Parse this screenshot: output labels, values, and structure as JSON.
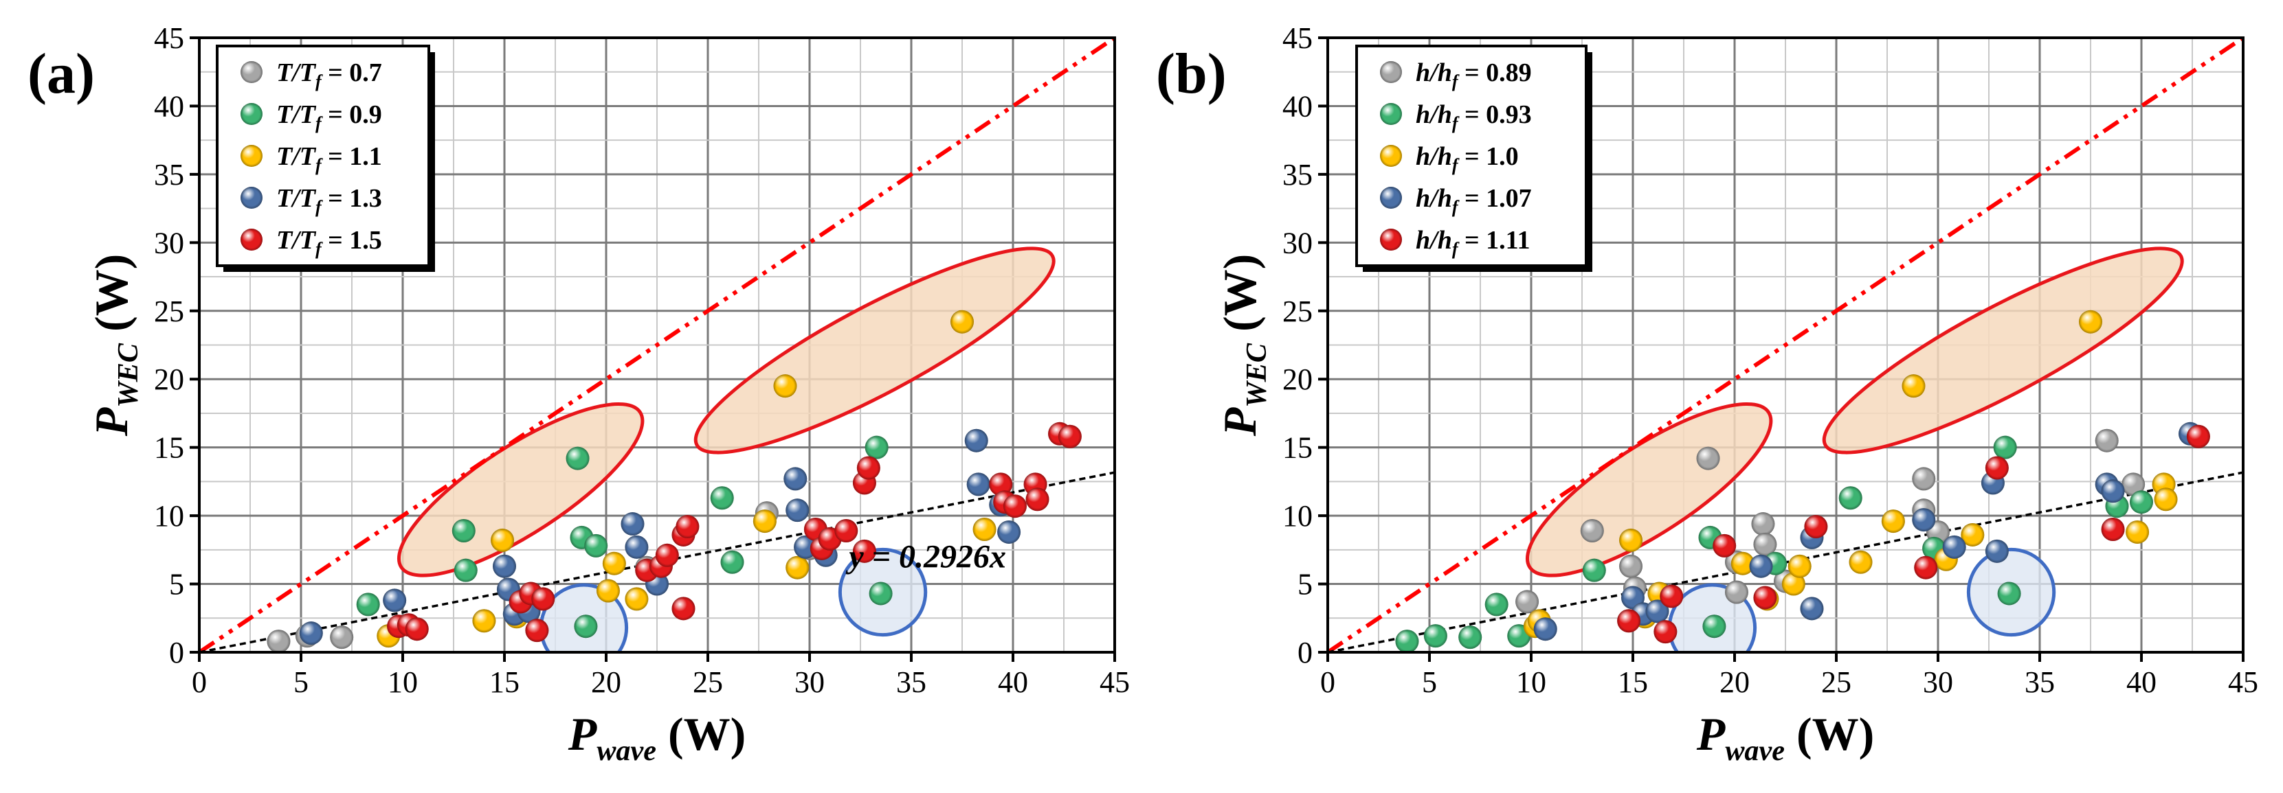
{
  "chart_data": [
    {
      "type": "scatter",
      "panel_label": "(a)",
      "xlabel": {
        "main": "P",
        "sub": "wave",
        "unit": " (W)"
      },
      "ylabel": {
        "main": "P",
        "sub": "WEC",
        "unit": " (W)"
      },
      "xlim": [
        0,
        45
      ],
      "ylim": [
        0,
        45
      ],
      "ticks": [
        "0",
        "5",
        "10",
        "15",
        "20",
        "25",
        "30",
        "35",
        "40",
        "45"
      ],
      "legend_position": "top-left",
      "grid": true,
      "series": [
        {
          "name": "T/Tf = 0.7",
          "label_main": "T/T",
          "label_sub": "f",
          "label_value": " = 0.7",
          "color": "#a6a6a6",
          "points": [
            [
              3.9,
              0.8
            ],
            [
              5.3,
              1.2
            ],
            [
              7.0,
              1.1
            ],
            [
              22.0,
              6.2
            ],
            [
              27.9,
              10.2
            ],
            [
              30.0,
              7.6
            ]
          ]
        },
        {
          "name": "T/Tf = 0.9",
          "label_main": "T/T",
          "label_sub": "f",
          "label_value": " = 0.9",
          "color": "#3cb371",
          "points": [
            [
              8.3,
              3.5
            ],
            [
              13.0,
              8.9
            ],
            [
              13.1,
              6.0
            ],
            [
              18.6,
              14.2
            ],
            [
              18.8,
              8.4
            ],
            [
              19.0,
              1.9
            ],
            [
              19.5,
              7.8
            ],
            [
              25.7,
              11.3
            ],
            [
              26.2,
              6.6
            ],
            [
              33.3,
              15.0
            ],
            [
              33.5,
              4.3
            ]
          ]
        },
        {
          "name": "T/Tf = 1.1",
          "label_main": "T/T",
          "label_sub": "f",
          "label_value": " = 1.1",
          "color": "#ffc000",
          "points": [
            [
              9.3,
              1.2
            ],
            [
              14.0,
              2.3
            ],
            [
              14.9,
              8.2
            ],
            [
              15.6,
              2.6
            ],
            [
              20.1,
              4.5
            ],
            [
              20.4,
              6.5
            ],
            [
              21.5,
              3.9
            ],
            [
              27.8,
              9.6
            ],
            [
              28.8,
              19.5
            ],
            [
              29.4,
              6.2
            ],
            [
              37.5,
              24.2
            ],
            [
              38.6,
              9.0
            ]
          ]
        },
        {
          "name": "T/Tf = 1.3",
          "label_main": "T/T",
          "label_sub": "f",
          "label_value": " = 1.3",
          "color": "#4a6fa5",
          "points": [
            [
              5.5,
              1.4
            ],
            [
              9.6,
              3.8
            ],
            [
              15.0,
              6.3
            ],
            [
              15.2,
              4.6
            ],
            [
              15.5,
              2.8
            ],
            [
              16.2,
              3.0
            ],
            [
              21.3,
              9.4
            ],
            [
              21.5,
              7.7
            ],
            [
              22.5,
              5.0
            ],
            [
              29.3,
              12.7
            ],
            [
              29.4,
              10.4
            ],
            [
              29.8,
              7.7
            ],
            [
              30.8,
              7.1
            ],
            [
              38.2,
              15.5
            ],
            [
              38.3,
              12.3
            ],
            [
              39.4,
              10.8
            ],
            [
              39.8,
              8.8
            ]
          ]
        },
        {
          "name": "T/Tf = 1.5",
          "label_main": "T/T",
          "label_sub": "f",
          "label_value": " = 1.5",
          "color": "#e31a1c",
          "points": [
            [
              9.8,
              1.9
            ],
            [
              10.3,
              2.0
            ],
            [
              10.7,
              1.7
            ],
            [
              15.8,
              3.7
            ],
            [
              16.3,
              4.3
            ],
            [
              16.6,
              1.6
            ],
            [
              16.9,
              3.9
            ],
            [
              22.0,
              6.0
            ],
            [
              22.7,
              6.3
            ],
            [
              23.0,
              7.1
            ],
            [
              23.8,
              8.6
            ],
            [
              24.0,
              9.2
            ],
            [
              23.8,
              3.2
            ],
            [
              30.3,
              9.0
            ],
            [
              30.6,
              7.6
            ],
            [
              31.0,
              8.3
            ],
            [
              31.8,
              8.9
            ],
            [
              32.7,
              12.4
            ],
            [
              32.9,
              13.5
            ],
            [
              32.7,
              7.4
            ],
            [
              39.4,
              12.3
            ],
            [
              39.6,
              11.0
            ],
            [
              40.1,
              10.7
            ],
            [
              41.1,
              12.3
            ],
            [
              41.2,
              11.2
            ],
            [
              42.3,
              16.0
            ],
            [
              42.8,
              15.8
            ]
          ]
        }
      ],
      "reference_lines": [
        {
          "name": "y = x",
          "slope": 1.0,
          "style": "dash-dot",
          "color": "#ff0000"
        },
        {
          "name": "fit",
          "slope": 0.2926,
          "style": "dashed",
          "color": "#000000"
        }
      ],
      "annotation": {
        "text": "y = 0.2926x",
        "x": 35.8,
        "y": 6.2
      },
      "highlight_ellipses": [
        {
          "cx": 15.8,
          "cy": 11.9,
          "rx": 7.0,
          "ry": 3.2,
          "angle_deg": 33
        },
        {
          "cx": 33.2,
          "cy": 22.1,
          "rx": 9.9,
          "ry": 3.2,
          "angle_deg": 28
        }
      ],
      "highlight_circles": [
        {
          "cx": 18.9,
          "cy": 1.8,
          "r": 2.1
        },
        {
          "cx": 33.6,
          "cy": 4.4,
          "r": 2.1
        }
      ]
    },
    {
      "type": "scatter",
      "panel_label": "(b)",
      "xlabel": {
        "main": "P",
        "sub": "wave",
        "unit": " (W)"
      },
      "ylabel": {
        "main": "P",
        "sub": "WEC",
        "unit": " (W)"
      },
      "xlim": [
        0,
        45
      ],
      "ylim": [
        0,
        45
      ],
      "ticks": [
        "0",
        "5",
        "10",
        "15",
        "20",
        "25",
        "30",
        "35",
        "40",
        "45"
      ],
      "legend_position": "top-left",
      "grid": true,
      "series": [
        {
          "name": "h/hf = 0.89",
          "label_main": "h/h",
          "label_sub": "f",
          "label_value": " = 0.89",
          "color": "#a6a6a6",
          "points": [
            [
              9.8,
              3.7
            ],
            [
              13.0,
              8.9
            ],
            [
              14.9,
              6.3
            ],
            [
              15.1,
              4.7
            ],
            [
              18.7,
              14.2
            ],
            [
              20.1,
              6.6
            ],
            [
              20.1,
              4.4
            ],
            [
              21.4,
              9.4
            ],
            [
              21.5,
              7.9
            ],
            [
              22.5,
              5.2
            ],
            [
              29.3,
              12.7
            ],
            [
              29.3,
              10.4
            ],
            [
              30.0,
              8.8
            ],
            [
              38.3,
              15.5
            ],
            [
              39.6,
              12.3
            ]
          ]
        },
        {
          "name": "h/hf = 0.93",
          "label_main": "h/h",
          "label_sub": "f",
          "label_value": " = 0.93",
          "color": "#3cb371",
          "points": [
            [
              3.9,
              0.8
            ],
            [
              5.3,
              1.2
            ],
            [
              7.0,
              1.1
            ],
            [
              8.3,
              3.5
            ],
            [
              9.4,
              1.2
            ],
            [
              13.1,
              6.0
            ],
            [
              18.8,
              8.4
            ],
            [
              19.0,
              1.9
            ],
            [
              22.0,
              6.5
            ],
            [
              25.7,
              11.3
            ],
            [
              29.8,
              7.6
            ],
            [
              33.3,
              15.0
            ],
            [
              33.5,
              4.3
            ],
            [
              38.8,
              10.7
            ],
            [
              40.0,
              11.0
            ]
          ]
        },
        {
          "name": "h/hf = 1.0",
          "label_main": "h/h",
          "label_sub": "f",
          "label_value": " = 1.0",
          "color": "#ffc000",
          "points": [
            [
              10.2,
              1.9
            ],
            [
              10.4,
              2.3
            ],
            [
              14.9,
              8.2
            ],
            [
              15.6,
              2.6
            ],
            [
              16.3,
              4.3
            ],
            [
              20.4,
              6.5
            ],
            [
              21.6,
              3.9
            ],
            [
              22.9,
              5.0
            ],
            [
              23.2,
              6.3
            ],
            [
              26.2,
              6.6
            ],
            [
              27.8,
              9.6
            ],
            [
              28.8,
              19.5
            ],
            [
              30.4,
              6.8
            ],
            [
              31.7,
              8.6
            ],
            [
              37.5,
              24.2
            ],
            [
              39.8,
              8.8
            ],
            [
              41.1,
              12.3
            ],
            [
              41.2,
              11.2
            ]
          ]
        },
        {
          "name": "h/hf = 1.07",
          "label_main": "h/h",
          "label_sub": "f",
          "label_value": " = 1.07",
          "color": "#4a6fa5",
          "points": [
            [
              10.7,
              1.7
            ],
            [
              15.0,
              4.0
            ],
            [
              15.5,
              2.8
            ],
            [
              16.2,
              3.0
            ],
            [
              21.3,
              6.3
            ],
            [
              23.8,
              8.4
            ],
            [
              23.8,
              3.2
            ],
            [
              29.3,
              9.7
            ],
            [
              30.8,
              7.7
            ],
            [
              32.7,
              12.4
            ],
            [
              32.9,
              7.4
            ],
            [
              38.3,
              12.3
            ],
            [
              38.6,
              11.8
            ],
            [
              42.4,
              16.0
            ]
          ]
        },
        {
          "name": "h/hf = 1.11",
          "label_main": "h/h",
          "label_sub": "f",
          "label_value": " = 1.11",
          "color": "#e31a1c",
          "points": [
            [
              14.8,
              2.3
            ],
            [
              16.6,
              1.5
            ],
            [
              16.9,
              4.1
            ],
            [
              19.5,
              7.8
            ],
            [
              21.5,
              4.0
            ],
            [
              24.0,
              9.2
            ],
            [
              29.4,
              6.2
            ],
            [
              32.9,
              13.5
            ],
            [
              38.6,
              9.0
            ],
            [
              42.8,
              15.8
            ]
          ]
        }
      ],
      "reference_lines": [
        {
          "name": "y = x",
          "slope": 1.0,
          "style": "dash-dot",
          "color": "#ff0000"
        },
        {
          "name": "fit",
          "slope": 0.2926,
          "style": "dashed",
          "color": "#000000"
        }
      ],
      "highlight_ellipses": [
        {
          "cx": 15.8,
          "cy": 11.9,
          "rx": 7.0,
          "ry": 3.2,
          "angle_deg": 33
        },
        {
          "cx": 33.2,
          "cy": 22.1,
          "rx": 9.9,
          "ry": 3.2,
          "angle_deg": 28
        }
      ],
      "highlight_circles": [
        {
          "cx": 18.9,
          "cy": 1.8,
          "r": 2.1
        },
        {
          "cx": 33.6,
          "cy": 4.4,
          "r": 2.1
        }
      ]
    }
  ]
}
